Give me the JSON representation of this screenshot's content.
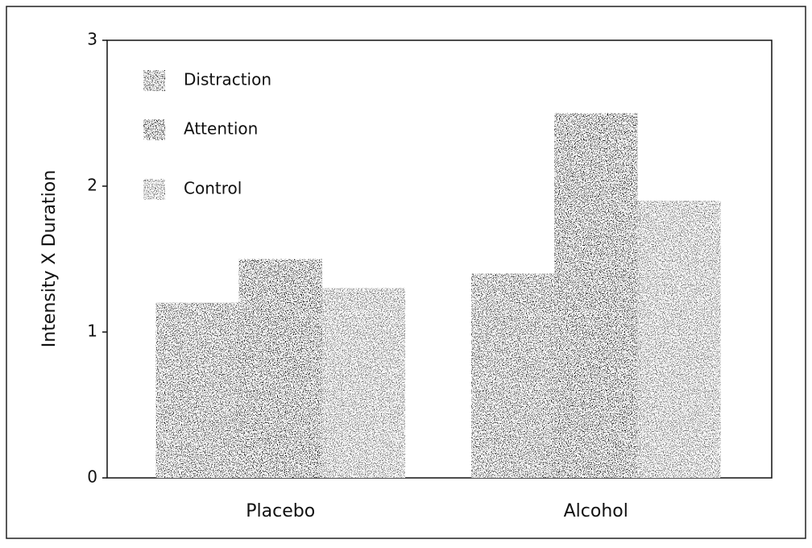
{
  "chart_data": {
    "type": "bar",
    "y_label": "Intensity X Duration",
    "categories": [
      "Placebo",
      "Alcohol"
    ],
    "series": [
      {
        "name": "Distraction",
        "color": "#1c1c1c",
        "values": [
          1.2,
          1.4
        ]
      },
      {
        "name": "Attention",
        "color": "#050505",
        "values": [
          1.5,
          2.5
        ]
      },
      {
        "name": "Control",
        "color": "#5a5a5a",
        "values": [
          1.3,
          1.9
        ]
      }
    ],
    "ylim": [
      0,
      3
    ],
    "yticks": [
      0,
      1,
      2,
      3
    ],
    "legend": "upper left",
    "grid": false
  }
}
